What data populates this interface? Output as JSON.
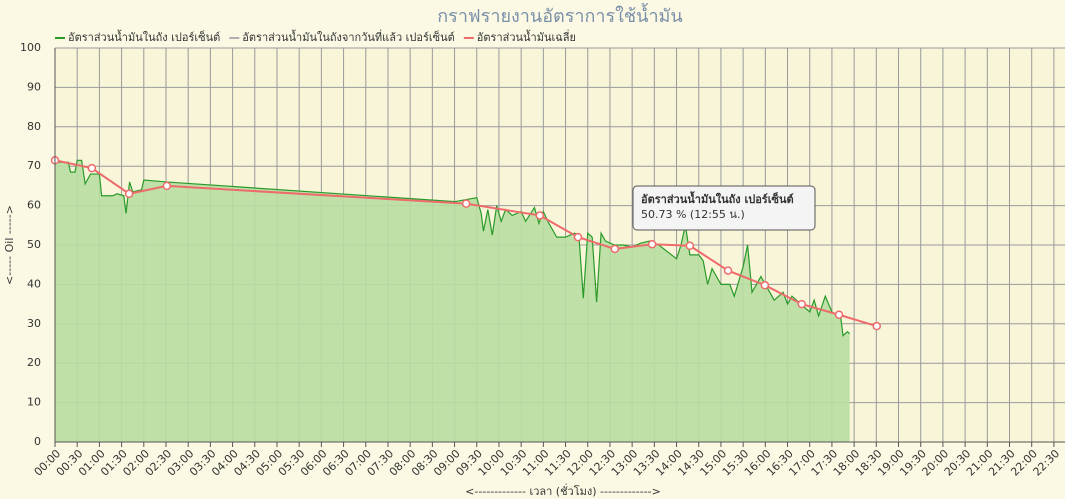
{
  "chart_data": {
    "type": "line",
    "title": "กราฟรายงานอัตราการใช้น้ำมัน",
    "y_label": "<----- Oil ----->",
    "x_label": "<------------- เวลา (ชั่วโมง) ------------->",
    "grid": true,
    "ylim": [
      0,
      100
    ],
    "yticks": [
      0,
      10,
      20,
      30,
      40,
      50,
      60,
      70,
      80,
      90,
      100
    ],
    "xlim": [
      0,
      22.75
    ],
    "xticks": [
      {
        "value": 0,
        "label": "00:00"
      },
      {
        "value": 0.5,
        "label": "00:30"
      },
      {
        "value": 1,
        "label": "01:00"
      },
      {
        "value": 1.5,
        "label": "01:30"
      },
      {
        "value": 2,
        "label": "02:00"
      },
      {
        "value": 2.5,
        "label": "02:30"
      },
      {
        "value": 3,
        "label": "03:00"
      },
      {
        "value": 3.5,
        "label": "03:30"
      },
      {
        "value": 4,
        "label": "04:00"
      },
      {
        "value": 4.5,
        "label": "04:30"
      },
      {
        "value": 5,
        "label": "05:00"
      },
      {
        "value": 5.5,
        "label": "05:30"
      },
      {
        "value": 6,
        "label": "06:00"
      },
      {
        "value": 6.5,
        "label": "06:30"
      },
      {
        "value": 7,
        "label": "07:00"
      },
      {
        "value": 7.5,
        "label": "07:30"
      },
      {
        "value": 8,
        "label": "08:00"
      },
      {
        "value": 8.5,
        "label": "08:30"
      },
      {
        "value": 9,
        "label": "09:00"
      },
      {
        "value": 9.5,
        "label": "09:30"
      },
      {
        "value": 10,
        "label": "10:00"
      },
      {
        "value": 10.5,
        "label": "10:30"
      },
      {
        "value": 11,
        "label": "11:00"
      },
      {
        "value": 11.5,
        "label": "11:30"
      },
      {
        "value": 12,
        "label": "12:00"
      },
      {
        "value": 12.5,
        "label": "12:30"
      },
      {
        "value": 13,
        "label": "13:00"
      },
      {
        "value": 13.5,
        "label": "13:30"
      },
      {
        "value": 14,
        "label": "14:00"
      },
      {
        "value": 14.5,
        "label": "14:30"
      },
      {
        "value": 15,
        "label": "15:00"
      },
      {
        "value": 15.5,
        "label": "15:30"
      },
      {
        "value": 16,
        "label": "16:00"
      },
      {
        "value": 16.5,
        "label": "16:30"
      },
      {
        "value": 17,
        "label": "17:00"
      },
      {
        "value": 17.5,
        "label": "17:30"
      },
      {
        "value": 18,
        "label": "18:00"
      },
      {
        "value": 18.5,
        "label": "18:30"
      },
      {
        "value": 19,
        "label": "19:00"
      },
      {
        "value": 19.5,
        "label": "19:30"
      },
      {
        "value": 20,
        "label": "20:00"
      },
      {
        "value": 20.5,
        "label": "20:30"
      },
      {
        "value": 21,
        "label": "21:00"
      },
      {
        "value": 21.5,
        "label": "21:30"
      },
      {
        "value": 22,
        "label": "22:00"
      },
      {
        "value": 22.5,
        "label": "22:30"
      }
    ],
    "tooltip": {
      "title": "อัตราส่วนน้ำมันในถัง เปอร์เซ็นต์",
      "text": "50.73 % (12:55 น.)"
    },
    "series": [
      {
        "name": "อัตราส่วนน้ำมันในถัง เปอร์เซ็นต์",
        "color": "#2a9a2a",
        "fill": "#b8dfa2",
        "markers": false,
        "x": [
          0,
          0.1,
          0.3,
          0.35,
          0.45,
          0.5,
          0.6,
          0.68,
          0.8,
          1.0,
          1.05,
          1.3,
          1.4,
          1.55,
          1.6,
          1.68,
          1.75,
          1.95,
          2.0,
          2.5,
          9.0,
          9.5,
          9.6,
          9.65,
          9.75,
          9.85,
          9.95,
          10.05,
          10.15,
          10.3,
          10.5,
          10.6,
          10.8,
          10.9,
          11.0,
          11.1,
          11.3,
          11.5,
          11.7,
          11.8,
          11.9,
          12.0,
          12.1,
          12.2,
          12.3,
          12.4,
          12.6,
          12.8,
          13.0,
          13.2,
          13.4,
          13.6,
          14.0,
          14.1,
          14.2,
          14.3,
          14.5,
          14.6,
          14.7,
          14.8,
          15.0,
          15.2,
          15.3,
          15.5,
          15.6,
          15.7,
          15.9,
          16.0,
          16.2,
          16.4,
          16.5,
          16.6,
          16.8,
          17.0,
          17.1,
          17.2,
          17.35,
          17.5,
          17.7,
          17.75,
          17.85,
          17.9
        ],
        "values": [
          71.5,
          71,
          71,
          68.5,
          68.5,
          71.5,
          71.5,
          65.5,
          68,
          68,
          62.5,
          62.5,
          63,
          62.5,
          58,
          66,
          63.5,
          64,
          66.5,
          66,
          61,
          62,
          58,
          53.5,
          59,
          52.5,
          60,
          56,
          59,
          57.5,
          58.5,
          56,
          59.5,
          55.5,
          58.5,
          56,
          52,
          52,
          53,
          52.5,
          36.5,
          53,
          52,
          35.5,
          53,
          51,
          50,
          50,
          49.5,
          50.5,
          51,
          50,
          46.5,
          50,
          55,
          47.5,
          47.5,
          46,
          40,
          44,
          40,
          40,
          37,
          44.5,
          50,
          38,
          42,
          40,
          36,
          38,
          35,
          37,
          35,
          33,
          36,
          32,
          37,
          33,
          31.5,
          27,
          28,
          27.5
        ]
      },
      {
        "name": "อัตราส่วนน้ำมันในถังจากวันที่แล้ว เปอร์เซ็นต์",
        "color": "#b0b0b0",
        "markers": false,
        "x": [],
        "values": []
      },
      {
        "name": "อัตราส่วนน้ำมันเฉลี่ย",
        "color": "#ee6b6b",
        "markers": true,
        "x": [
          0,
          0.83,
          1.67,
          2.52,
          9.26,
          10.92,
          11.78,
          12.61,
          13.45,
          14.3,
          15.16,
          15.99,
          16.82,
          17.66,
          18.51
        ],
        "values": [
          71.5,
          69.5,
          63,
          65,
          60.5,
          57.5,
          52,
          49,
          50.2,
          49.8,
          43.5,
          39.8,
          35,
          32.3,
          29.4
        ]
      }
    ]
  }
}
